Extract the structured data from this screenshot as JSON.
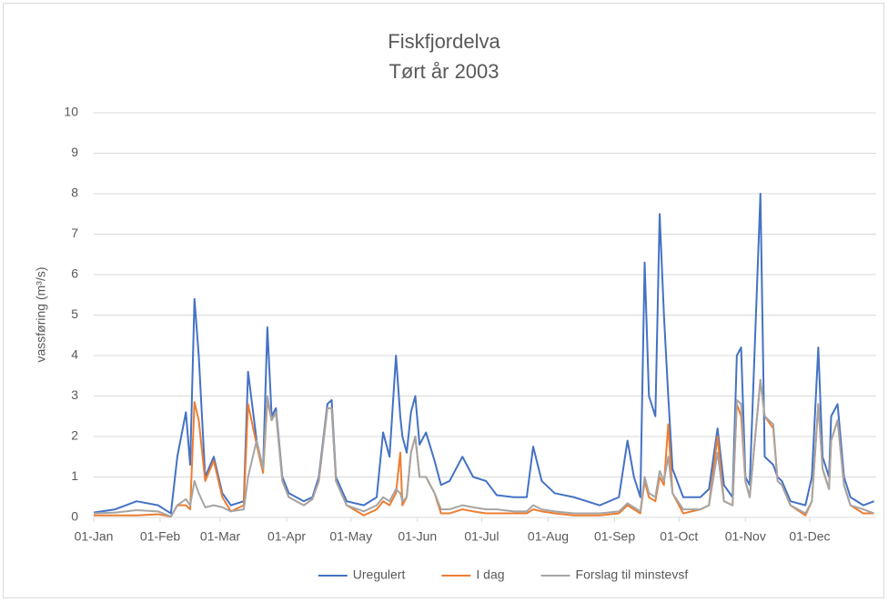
{
  "chart_data": {
    "type": "line",
    "title": "Fiskfjordelva",
    "subtitle": "Tørt år 2003",
    "y_label": "vassføring (m³/s)",
    "x": [
      0,
      10,
      20,
      30,
      36,
      39,
      43,
      45,
      47,
      49,
      52,
      56,
      60,
      64,
      70,
      72,
      76,
      79,
      81,
      83,
      85,
      88,
      91,
      98,
      102,
      105,
      109,
      111,
      113,
      118,
      126,
      132,
      135,
      138,
      141,
      143,
      144,
      146,
      148,
      150,
      152,
      155,
      159,
      162,
      166,
      172,
      177,
      183,
      188,
      196,
      202,
      205,
      209,
      215,
      224,
      236,
      245,
      249,
      252,
      255,
      257,
      259,
      262,
      264,
      266,
      268,
      270,
      275,
      283,
      287,
      291,
      294,
      298,
      300,
      302,
      304,
      306,
      311,
      313,
      317,
      319,
      321,
      325,
      332,
      335,
      338,
      340,
      343,
      344,
      347,
      350,
      353,
      359,
      364
    ],
    "series": [
      {
        "name": "Uregulert",
        "color": "#4472c4",
        "values": [
          0.12,
          0.2,
          0.4,
          0.3,
          0.1,
          1.5,
          2.6,
          1.3,
          5.4,
          4.0,
          1.0,
          1.5,
          0.6,
          0.3,
          0.4,
          3.6,
          1.9,
          1.2,
          4.7,
          2.5,
          2.7,
          1.0,
          0.6,
          0.4,
          0.5,
          1.0,
          2.8,
          2.9,
          1.0,
          0.4,
          0.3,
          0.5,
          2.1,
          1.5,
          4.0,
          2.5,
          2.0,
          1.6,
          2.6,
          3.0,
          1.8,
          2.1,
          1.4,
          0.8,
          0.9,
          1.5,
          1.0,
          0.9,
          0.55,
          0.5,
          0.5,
          1.75,
          0.9,
          0.6,
          0.5,
          0.3,
          0.5,
          1.9,
          1.0,
          0.5,
          6.3,
          3.0,
          2.5,
          7.5,
          5.0,
          3.0,
          1.2,
          0.5,
          0.5,
          0.7,
          2.2,
          0.8,
          0.5,
          4.0,
          4.2,
          1.0,
          0.8,
          8.0,
          1.5,
          1.3,
          1.0,
          0.9,
          0.4,
          0.3,
          1.0,
          4.2,
          1.5,
          1.0,
          2.5,
          2.8,
          1.0,
          0.5,
          0.3,
          0.4
        ]
      },
      {
        "name": "I dag",
        "color": "#ed7d31",
        "values": [
          0.05,
          0.05,
          0.05,
          0.08,
          0.02,
          0.3,
          0.3,
          0.2,
          2.85,
          2.4,
          0.9,
          1.4,
          0.5,
          0.15,
          0.3,
          2.8,
          1.8,
          1.1,
          2.9,
          2.4,
          2.6,
          0.9,
          0.5,
          0.3,
          0.45,
          0.9,
          2.7,
          2.7,
          0.9,
          0.3,
          0.05,
          0.2,
          0.4,
          0.3,
          0.6,
          1.6,
          0.3,
          0.5,
          1.6,
          2.0,
          1.0,
          1.0,
          0.6,
          0.1,
          0.1,
          0.2,
          0.15,
          0.1,
          0.1,
          0.1,
          0.1,
          0.2,
          0.15,
          0.1,
          0.05,
          0.05,
          0.1,
          0.3,
          0.2,
          0.1,
          0.9,
          0.5,
          0.4,
          1.0,
          0.8,
          2.3,
          0.6,
          0.1,
          0.2,
          0.3,
          2.0,
          0.4,
          0.3,
          2.8,
          2.5,
          0.9,
          0.5,
          3.4,
          2.5,
          2.2,
          0.9,
          0.8,
          0.3,
          0.05,
          0.4,
          2.8,
          1.2,
          0.7,
          1.9,
          2.4,
          0.8,
          0.3,
          0.1,
          0.1
        ]
      },
      {
        "name": "Forslag til minstevsf",
        "color": "#a5a5a5",
        "values": [
          0.1,
          0.12,
          0.18,
          0.15,
          0.02,
          0.3,
          0.45,
          0.3,
          0.9,
          0.6,
          0.25,
          0.3,
          0.25,
          0.15,
          0.2,
          1.0,
          1.9,
          1.2,
          3.0,
          2.4,
          2.6,
          0.9,
          0.5,
          0.3,
          0.45,
          0.9,
          2.7,
          2.7,
          0.9,
          0.3,
          0.15,
          0.3,
          0.5,
          0.4,
          0.7,
          0.6,
          0.4,
          0.5,
          1.6,
          2.0,
          1.0,
          1.0,
          0.6,
          0.2,
          0.2,
          0.3,
          0.25,
          0.2,
          0.2,
          0.15,
          0.15,
          0.3,
          0.2,
          0.15,
          0.1,
          0.1,
          0.15,
          0.35,
          0.25,
          0.15,
          1.0,
          0.6,
          0.5,
          1.15,
          0.9,
          1.5,
          0.6,
          0.2,
          0.2,
          0.3,
          1.6,
          0.4,
          0.3,
          2.9,
          2.8,
          0.9,
          0.5,
          3.4,
          2.5,
          2.3,
          0.9,
          0.8,
          0.3,
          0.1,
          0.4,
          2.8,
          1.2,
          0.7,
          1.9,
          2.4,
          0.8,
          0.3,
          0.2,
          0.1
        ]
      }
    ],
    "xlim": [
      0,
      365
    ],
    "xticks": [
      {
        "value": 0,
        "label": "01-Jan"
      },
      {
        "value": 31,
        "label": "01-Feb"
      },
      {
        "value": 59,
        "label": "01-Mar"
      },
      {
        "value": 90,
        "label": "01-Apr"
      },
      {
        "value": 120,
        "label": "01-May"
      },
      {
        "value": 151,
        "label": "01-Jun"
      },
      {
        "value": 181,
        "label": "01-Jul"
      },
      {
        "value": 212,
        "label": "01-Aug"
      },
      {
        "value": 243,
        "label": "01-Sep"
      },
      {
        "value": 273,
        "label": "01-Oct"
      },
      {
        "value": 304,
        "label": "01-Nov"
      },
      {
        "value": 334,
        "label": "01-Dec"
      }
    ],
    "ylim": [
      0,
      10
    ],
    "yticks": [
      0,
      1,
      2,
      3,
      4,
      5,
      6,
      7,
      8,
      9,
      10
    ],
    "grid": true,
    "legend": "bottom"
  }
}
